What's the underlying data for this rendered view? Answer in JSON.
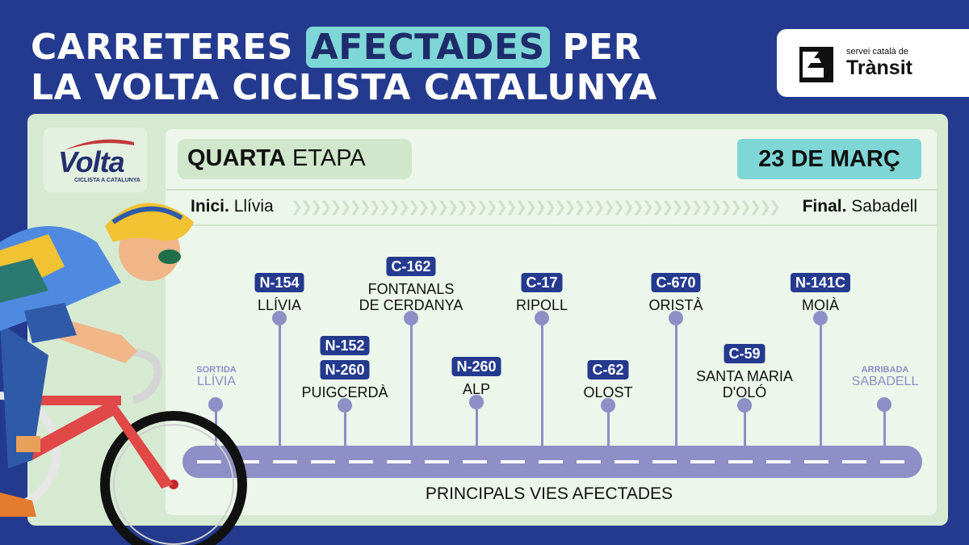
{
  "headline": {
    "line1_pre": "CARRETERES",
    "line1_highlight": "AFECTADES",
    "line1_post": "PER",
    "line2": "LA VOLTA CICLISTA CATALUNYA"
  },
  "brand": {
    "small": "servei català de",
    "big": "Trànsit"
  },
  "volta_logo": {
    "word": "Volta",
    "sub": "CICLISTA A CATALUNYA"
  },
  "stage": {
    "ordinal": "QUARTA",
    "label": "ETAPA",
    "date": "23 DE MARÇ",
    "start_label": "Inici.",
    "start_place": "Llívia",
    "end_label": "Final.",
    "end_place": "Sabadell"
  },
  "endpoints": {
    "start_kind": "SORTIDA",
    "start_place": "LLÍVIA",
    "end_kind": "ARRIBADA",
    "end_place": "SABADELL"
  },
  "stops": [
    {
      "roads": [
        "N-154"
      ],
      "place": [
        "LLÍVIA"
      ]
    },
    {
      "roads": [
        "N-152",
        "N-260"
      ],
      "place": [
        "PUIGCERDÀ"
      ]
    },
    {
      "roads": [
        "C-162"
      ],
      "place": [
        "FONTANALS",
        "DE CERDANYA"
      ]
    },
    {
      "roads": [
        "N-260"
      ],
      "place": [
        "ALP"
      ]
    },
    {
      "roads": [
        "C-17"
      ],
      "place": [
        "RIPOLL"
      ]
    },
    {
      "roads": [
        "C-62"
      ],
      "place": [
        "OLOST"
      ]
    },
    {
      "roads": [
        "C-670"
      ],
      "place": [
        "ORISTÀ"
      ]
    },
    {
      "roads": [
        "C-59"
      ],
      "place": [
        "SANTA MARIA",
        "D'OLÓ"
      ]
    },
    {
      "roads": [
        "N-141C"
      ],
      "place": [
        "MOIÀ"
      ]
    }
  ],
  "caption": "PRINCIPALS VIES AFECTADES",
  "colors": {
    "background": "#243a8f",
    "accent": "#7fd6d6",
    "panel": "#d6ead2",
    "road": "#8d8fc6"
  }
}
